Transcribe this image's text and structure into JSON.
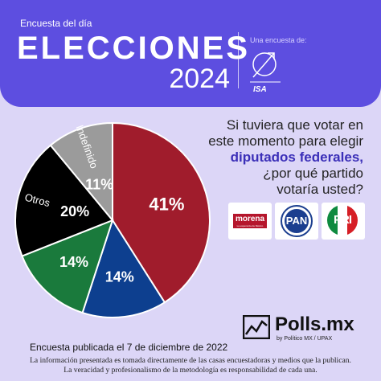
{
  "header": {
    "kicker": "Encuesta del día",
    "title": "ELECCIONES",
    "year": "2024",
    "sponsor_caption": "Una encuesta de:",
    "sponsor_name": "ISA"
  },
  "question": {
    "line1": "Si tuviera que votar en",
    "line2": "este momento para elegir",
    "emphasis": "diputados federales,",
    "line4": "¿por qué partido",
    "line5": "votaría usted?"
  },
  "colors": {
    "header_bg": "#5d4ee0",
    "page_bg": "#dcd6f7",
    "emphasis": "#3b2fb8",
    "morena": "#a01c2c",
    "pan": "#0d3f8f",
    "pri": "#1a7a3c",
    "otros": "#000000",
    "indefinido": "#9b9b9b"
  },
  "chart_data": {
    "type": "pie",
    "title": "",
    "slices": [
      {
        "label": "",
        "value": 41,
        "value_label": "41%",
        "color": "#a01c2c"
      },
      {
        "label": "",
        "value": 14,
        "value_label": "14%",
        "color": "#0d3f8f"
      },
      {
        "label": "",
        "value": 14,
        "value_label": "14%",
        "color": "#1a7a3c"
      },
      {
        "label": "Otros",
        "value": 20,
        "value_label": "20%",
        "color": "#000000"
      },
      {
        "label": "Indefinido",
        "value": 11,
        "value_label": "11%",
        "color": "#9b9b9b"
      }
    ],
    "legend": "party logos to the right of the pie"
  },
  "parties": {
    "morena": {
      "name": "morena",
      "tagline": "La esperanza de México"
    },
    "pan": {
      "name": "PAN"
    },
    "pri": {
      "name": "PRI"
    }
  },
  "brand": {
    "name": "Polls.mx",
    "byline": "by Político MX / UPAX"
  },
  "footer": {
    "published": "Encuesta publicada el 7 de diciembre de 2022",
    "disclaimer1": "La información presentada es tomada directamente de las casas encuestadoras y medios que la publican.",
    "disclaimer2": "La veracidad y profesionalismo de la metodología es responsabilidad de cada una."
  }
}
